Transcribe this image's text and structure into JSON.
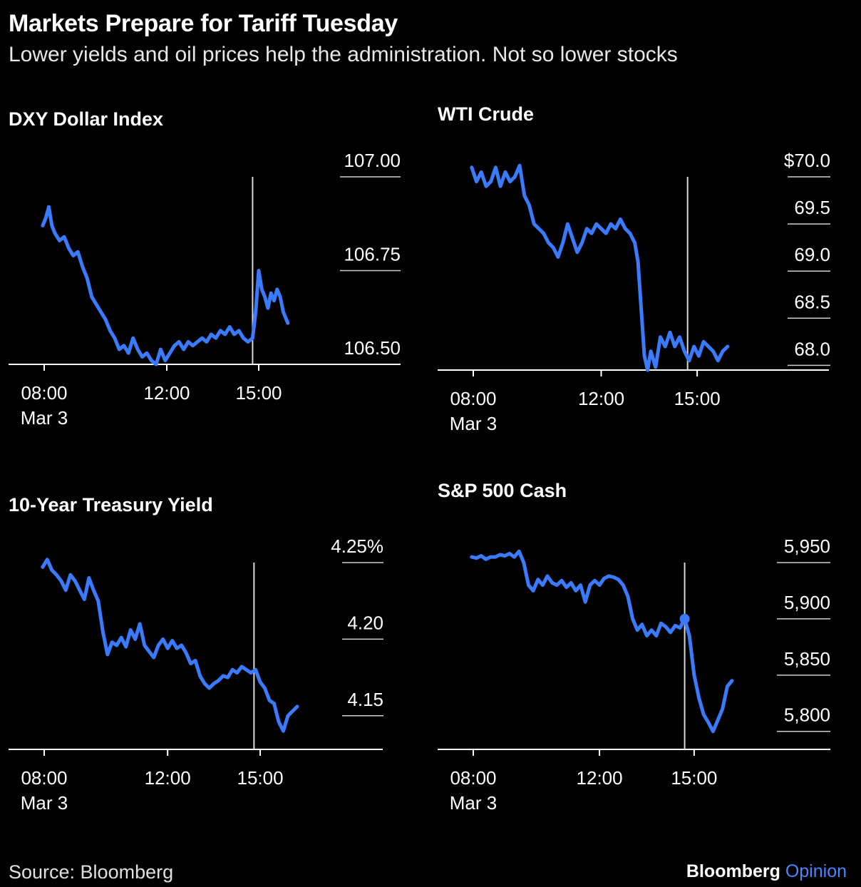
{
  "title": "Markets Prepare for Tariff Tuesday",
  "subtitle": "Lower yields and oil prices help the administration. Not so lower stocks",
  "source": "Source: Bloomberg",
  "brand": {
    "name": "Bloomberg",
    "suffix": "Opinion"
  },
  "colors": {
    "line": "#3a7bfd",
    "background": "#000000",
    "axis": "#ffffff",
    "brand_accent": "#4a86ff"
  },
  "chart_data": [
    {
      "type": "line",
      "title": "DXY Dollar Index",
      "x_ticks": [
        "08:00",
        "12:00",
        "15:00"
      ],
      "x_tick_values": [
        8,
        12,
        15
      ],
      "x_sublabel": "Mar 3",
      "y_ticks": [
        "107.00",
        "106.75",
        "106.50"
      ],
      "y_tick_values": [
        107.0,
        106.75,
        106.5
      ],
      "ylim": [
        106.5,
        107.0
      ],
      "vline_x": 14.8,
      "x": [
        7.95,
        8.05,
        8.15,
        8.25,
        8.35,
        8.5,
        8.65,
        8.8,
        8.95,
        9.1,
        9.25,
        9.4,
        9.55,
        9.7,
        9.85,
        10.0,
        10.15,
        10.3,
        10.45,
        10.6,
        10.75,
        10.9,
        11.05,
        11.2,
        11.35,
        11.5,
        11.65,
        11.8,
        11.95,
        12.1,
        12.25,
        12.4,
        12.55,
        12.7,
        12.85,
        13.0,
        13.15,
        13.3,
        13.45,
        13.6,
        13.75,
        13.9,
        14.05,
        14.2,
        14.35,
        14.5,
        14.65,
        14.8,
        14.9,
        15.0,
        15.1,
        15.2,
        15.3,
        15.4,
        15.5,
        15.6,
        15.7,
        15.8,
        15.95
      ],
      "y": [
        106.87,
        106.89,
        106.92,
        106.87,
        106.85,
        106.83,
        106.84,
        106.81,
        106.79,
        106.8,
        106.76,
        106.73,
        106.68,
        106.66,
        106.64,
        106.62,
        106.59,
        106.57,
        106.54,
        106.55,
        106.53,
        106.57,
        106.54,
        106.52,
        106.53,
        106.51,
        106.5,
        106.54,
        106.51,
        106.53,
        106.55,
        106.56,
        106.54,
        106.56,
        106.55,
        106.56,
        106.57,
        106.56,
        106.58,
        106.57,
        106.59,
        106.58,
        106.6,
        106.58,
        106.59,
        106.57,
        106.56,
        106.57,
        106.64,
        106.75,
        106.7,
        106.68,
        106.65,
        106.69,
        106.67,
        106.7,
        106.68,
        106.64,
        106.61
      ]
    },
    {
      "type": "line",
      "title": "WTI Crude",
      "x_ticks": [
        "08:00",
        "12:00",
        "15:00"
      ],
      "x_tick_values": [
        8,
        12,
        15
      ],
      "x_sublabel": "Mar 3",
      "y_ticks": [
        "$70.0",
        "69.5",
        "69.0",
        "68.5",
        "68.0"
      ],
      "y_tick_values": [
        70.0,
        69.5,
        69.0,
        68.5,
        68.0
      ],
      "ylim": [
        67.95,
        70.2
      ],
      "vline_x": 14.7,
      "x": [
        7.95,
        8.1,
        8.25,
        8.4,
        8.55,
        8.7,
        8.85,
        9.0,
        9.15,
        9.3,
        9.45,
        9.6,
        9.75,
        9.9,
        10.05,
        10.2,
        10.35,
        10.5,
        10.65,
        10.8,
        10.95,
        11.1,
        11.25,
        11.4,
        11.55,
        11.7,
        11.85,
        12.0,
        12.15,
        12.3,
        12.45,
        12.6,
        12.75,
        12.9,
        13.05,
        13.15,
        13.25,
        13.35,
        13.45,
        13.55,
        13.7,
        13.85,
        14.0,
        14.15,
        14.3,
        14.45,
        14.6,
        14.75,
        14.9,
        15.05,
        15.2,
        15.35,
        15.5,
        15.65,
        15.8,
        15.95
      ],
      "y": [
        70.1,
        69.95,
        70.05,
        69.9,
        69.95,
        70.1,
        69.9,
        70.05,
        69.95,
        70.0,
        70.12,
        69.8,
        69.7,
        69.5,
        69.45,
        69.4,
        69.3,
        69.25,
        69.15,
        69.3,
        69.5,
        69.35,
        69.2,
        69.3,
        69.45,
        69.4,
        69.5,
        69.45,
        69.4,
        69.5,
        69.45,
        69.55,
        69.45,
        69.4,
        69.3,
        69.1,
        68.6,
        68.1,
        67.95,
        68.15,
        67.98,
        68.3,
        68.2,
        68.35,
        68.2,
        68.3,
        68.15,
        68.05,
        68.2,
        68.1,
        68.25,
        68.2,
        68.15,
        68.05,
        68.15,
        68.2
      ]
    },
    {
      "type": "line",
      "title": "10-Year Treasury Yield",
      "x_ticks": [
        "08:00",
        "12:00",
        "15:00"
      ],
      "x_tick_values": [
        8,
        12,
        15
      ],
      "x_sublabel": "Mar 3",
      "y_ticks": [
        "4.25%",
        "4.20",
        "4.15"
      ],
      "y_tick_values": [
        4.25,
        4.2,
        4.15
      ],
      "ylim": [
        4.13,
        4.25
      ],
      "vline_x": 14.8,
      "x": [
        7.95,
        8.1,
        8.25,
        8.4,
        8.55,
        8.7,
        8.85,
        9.0,
        9.15,
        9.3,
        9.45,
        9.6,
        9.75,
        9.9,
        10.05,
        10.2,
        10.35,
        10.5,
        10.65,
        10.8,
        10.95,
        11.1,
        11.25,
        11.4,
        11.55,
        11.7,
        11.85,
        12.0,
        12.15,
        12.3,
        12.45,
        12.6,
        12.75,
        12.9,
        13.05,
        13.2,
        13.35,
        13.5,
        13.65,
        13.8,
        13.95,
        14.1,
        14.25,
        14.4,
        14.55,
        14.7,
        14.85,
        15.0,
        15.15,
        15.3,
        15.45,
        15.6,
        15.75,
        15.9,
        16.05,
        16.2
      ],
      "y": [
        4.247,
        4.252,
        4.245,
        4.242,
        4.238,
        4.232,
        4.242,
        4.238,
        4.232,
        4.226,
        4.24,
        4.232,
        4.225,
        4.205,
        4.19,
        4.198,
        4.196,
        4.201,
        4.195,
        4.206,
        4.2,
        4.21,
        4.196,
        4.192,
        4.188,
        4.196,
        4.2,
        4.194,
        4.199,
        4.194,
        4.196,
        4.191,
        4.184,
        4.186,
        4.176,
        4.171,
        4.168,
        4.171,
        4.173,
        4.176,
        4.175,
        4.18,
        4.178,
        4.182,
        4.18,
        4.178,
        4.18,
        4.172,
        4.168,
        4.16,
        4.158,
        4.146,
        4.14,
        4.15,
        4.153,
        4.156
      ]
    },
    {
      "type": "line",
      "title": "S&P 500 Cash",
      "x_ticks": [
        "08:00",
        "12:00",
        "15:00"
      ],
      "x_tick_values": [
        8,
        12,
        15
      ],
      "x_sublabel": "Mar 3",
      "y_ticks": [
        "5,950",
        "5,900",
        "5,850",
        "5,800"
      ],
      "y_tick_values": [
        5950,
        5900,
        5850,
        5800
      ],
      "ylim": [
        5785,
        5965
      ],
      "vline_x": 14.7,
      "x": [
        7.95,
        8.1,
        8.25,
        8.4,
        8.55,
        8.7,
        8.85,
        9.0,
        9.15,
        9.3,
        9.45,
        9.6,
        9.75,
        9.9,
        10.05,
        10.2,
        10.35,
        10.5,
        10.65,
        10.8,
        10.95,
        11.1,
        11.25,
        11.4,
        11.55,
        11.7,
        11.85,
        12.0,
        12.15,
        12.3,
        12.45,
        12.6,
        12.75,
        12.9,
        13.05,
        13.2,
        13.35,
        13.5,
        13.65,
        13.8,
        13.95,
        14.1,
        14.25,
        14.4,
        14.55,
        14.7,
        14.85,
        15.0,
        15.15,
        15.3,
        15.45,
        15.6,
        15.75,
        15.9,
        16.05,
        16.2
      ],
      "y": [
        5955,
        5954,
        5956,
        5953,
        5955,
        5955,
        5957,
        5956,
        5958,
        5955,
        5960,
        5950,
        5930,
        5925,
        5935,
        5930,
        5938,
        5932,
        5930,
        5934,
        5928,
        5932,
        5925,
        5930,
        5915,
        5930,
        5934,
        5930,
        5936,
        5938,
        5937,
        5935,
        5930,
        5920,
        5900,
        5890,
        5895,
        5885,
        5890,
        5885,
        5896,
        5893,
        5888,
        5894,
        5892,
        5900,
        5885,
        5850,
        5830,
        5815,
        5808,
        5800,
        5810,
        5820,
        5840,
        5845
      ]
    }
  ]
}
